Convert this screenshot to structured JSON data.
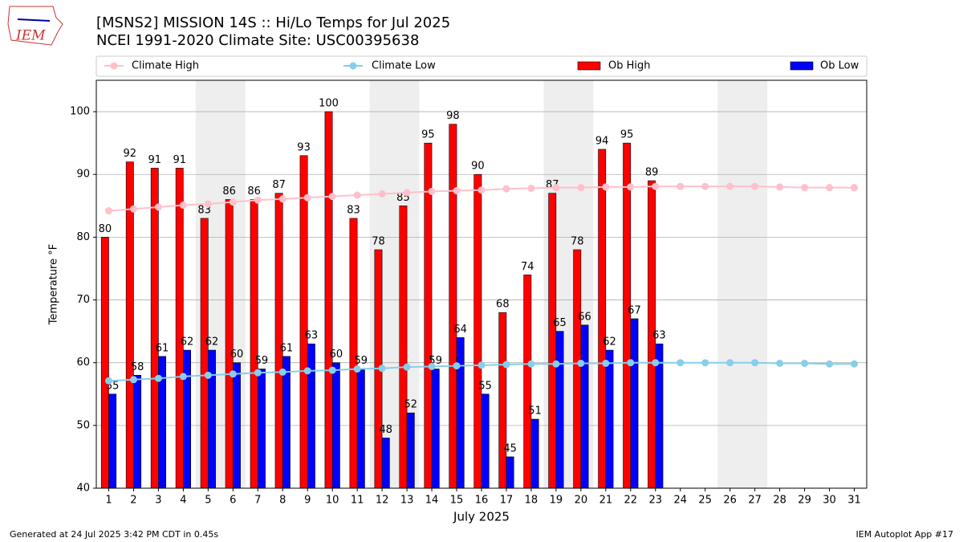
{
  "logo": "IEM",
  "footer_left": "Generated at 24 Jul 2025 3:42 PM CDT in 0.45s",
  "footer_right": "IEM Autoplot App #17",
  "chart_data": {
    "type": "bar",
    "title": "[MSNS2] MISSION 14S :: Hi/Lo Temps for Jul 2025",
    "subtitle": "NCEI 1991-2020 Climate Site: USC00395638",
    "x_label": "July 2025",
    "y_label": "Temperature °F",
    "categories": [
      "1",
      "2",
      "3",
      "4",
      "5",
      "6",
      "7",
      "8",
      "9",
      "10",
      "11",
      "12",
      "13",
      "14",
      "15",
      "16",
      "17",
      "18",
      "19",
      "20",
      "21",
      "22",
      "23",
      "24",
      "25",
      "26",
      "27",
      "28",
      "29",
      "30",
      "31"
    ],
    "shaded": [
      [
        4,
        5
      ],
      [
        11,
        12
      ],
      [
        18,
        19
      ],
      [
        25,
        26
      ]
    ],
    "series": [
      {
        "name": "Climate High",
        "kind": "line",
        "color": "#ffc0cb",
        "values": [
          84.2,
          84.5,
          84.8,
          85.1,
          85.3,
          85.6,
          85.9,
          86.1,
          86.3,
          86.5,
          86.7,
          86.9,
          87.1,
          87.3,
          87.4,
          87.5,
          87.7,
          87.8,
          87.9,
          87.9,
          88.0,
          88.0,
          88.1,
          88.1,
          88.1,
          88.1,
          88.1,
          88.0,
          87.9,
          87.9,
          87.9
        ]
      },
      {
        "name": "Climate Low",
        "kind": "line",
        "color": "#87ceeb",
        "values": [
          57.1,
          57.3,
          57.5,
          57.8,
          58.0,
          58.2,
          58.4,
          58.5,
          58.7,
          58.8,
          59.0,
          59.1,
          59.3,
          59.4,
          59.5,
          59.6,
          59.7,
          59.8,
          59.8,
          59.9,
          59.9,
          60.0,
          60.0,
          60.0,
          60.0,
          60.0,
          60.0,
          59.9,
          59.9,
          59.8,
          59.8
        ]
      },
      {
        "name": "Ob High",
        "kind": "bar",
        "color": "#ff0000",
        "values": [
          80,
          92,
          91,
          91,
          83,
          86,
          86,
          87,
          93,
          100,
          83,
          78,
          85,
          95,
          98,
          90,
          68,
          74,
          87,
          78,
          94,
          95,
          89,
          null,
          null,
          null,
          null,
          null,
          null,
          null,
          null
        ]
      },
      {
        "name": "Ob Low",
        "kind": "bar",
        "color": "#0000ff",
        "values": [
          55,
          58,
          61,
          62,
          62,
          60,
          59,
          61,
          63,
          60,
          59,
          48,
          52,
          59,
          64,
          55,
          45,
          51,
          65,
          66,
          62,
          67,
          63,
          null,
          null,
          null,
          null,
          null,
          null,
          null,
          null
        ]
      }
    ],
    "ylim": [
      40,
      105
    ],
    "yticks": [
      40,
      50,
      60,
      70,
      80,
      90,
      100
    ],
    "grid": true
  }
}
